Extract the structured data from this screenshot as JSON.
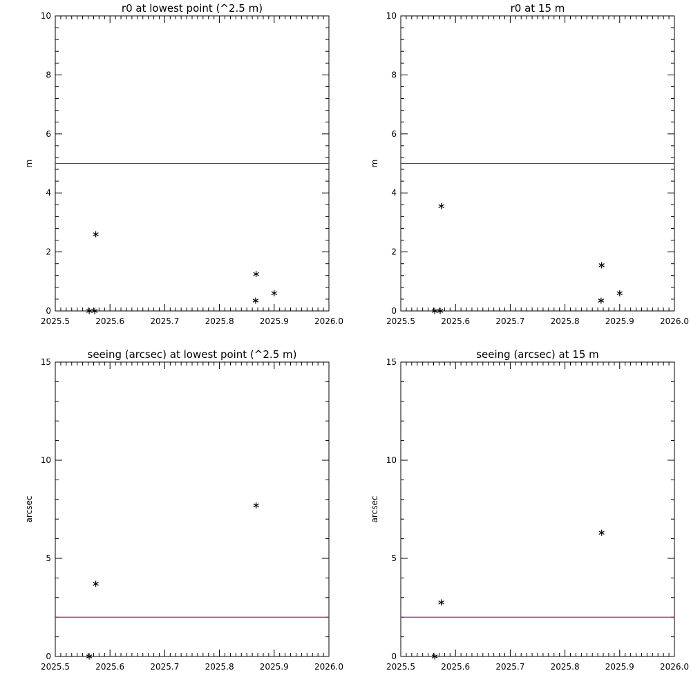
{
  "colors": {
    "axes": "#000000",
    "reference_line": "#a0185a",
    "marker": "#000000",
    "background": "#ffffff"
  },
  "chart_data": [
    {
      "type": "scatter",
      "title": "r0 at lowest point (^2.5 m)",
      "xlabel": "",
      "ylabel": "m",
      "xlim": [
        2025.5,
        2026.0
      ],
      "ylim": [
        0,
        10
      ],
      "xticks": [
        "2025.5",
        "2025.6",
        "2025.7",
        "2025.8",
        "2025.9",
        "2026.0"
      ],
      "yticks": [
        "0",
        "2",
        "4",
        "6",
        "8",
        "10"
      ],
      "reference_line": 5,
      "points": [
        {
          "x": 2025.562,
          "y": 0
        },
        {
          "x": 2025.572,
          "y": 0
        },
        {
          "x": 2025.574,
          "y": 2.6
        },
        {
          "x": 2025.866,
          "y": 0.35
        },
        {
          "x": 2025.867,
          "y": 1.25
        },
        {
          "x": 2025.9,
          "y": 0.6
        }
      ]
    },
    {
      "type": "scatter",
      "title": "r0 at 15 m",
      "xlabel": "",
      "ylabel": "m",
      "xlim": [
        2025.5,
        2026.0
      ],
      "ylim": [
        0,
        10
      ],
      "xticks": [
        "2025.5",
        "2025.6",
        "2025.7",
        "2025.8",
        "2025.9",
        "2026.0"
      ],
      "yticks": [
        "0",
        "2",
        "4",
        "6",
        "8",
        "10"
      ],
      "reference_line": 5,
      "points": [
        {
          "x": 2025.562,
          "y": 0
        },
        {
          "x": 2025.572,
          "y": 0
        },
        {
          "x": 2025.574,
          "y": 3.55
        },
        {
          "x": 2025.866,
          "y": 0.35
        },
        {
          "x": 2025.867,
          "y": 1.55
        },
        {
          "x": 2025.9,
          "y": 0.6
        }
      ]
    },
    {
      "type": "scatter",
      "title": "seeing (arcsec) at lowest point (^2.5 m)",
      "xlabel": "",
      "ylabel": "arcsec",
      "xlim": [
        2025.5,
        2026.0
      ],
      "ylim": [
        0,
        15
      ],
      "xticks": [
        "2025.5",
        "2025.6",
        "2025.7",
        "2025.8",
        "2025.9",
        "2026.0"
      ],
      "yticks": [
        "0",
        "5",
        "10",
        "15"
      ],
      "reference_line": 2,
      "points": [
        {
          "x": 2025.562,
          "y": 0
        },
        {
          "x": 2025.574,
          "y": 3.7
        },
        {
          "x": 2025.867,
          "y": 7.7
        }
      ]
    },
    {
      "type": "scatter",
      "title": "seeing (arcsec) at 15 m",
      "xlabel": "",
      "ylabel": "arcsec",
      "xlim": [
        2025.5,
        2026.0
      ],
      "ylim": [
        0,
        15
      ],
      "xticks": [
        "2025.5",
        "2025.6",
        "2025.7",
        "2025.8",
        "2025.9",
        "2026.0"
      ],
      "yticks": [
        "0",
        "5",
        "10",
        "15"
      ],
      "reference_line": 2,
      "points": [
        {
          "x": 2025.562,
          "y": 0
        },
        {
          "x": 2025.574,
          "y": 2.75
        },
        {
          "x": 2025.867,
          "y": 6.3
        }
      ]
    }
  ]
}
